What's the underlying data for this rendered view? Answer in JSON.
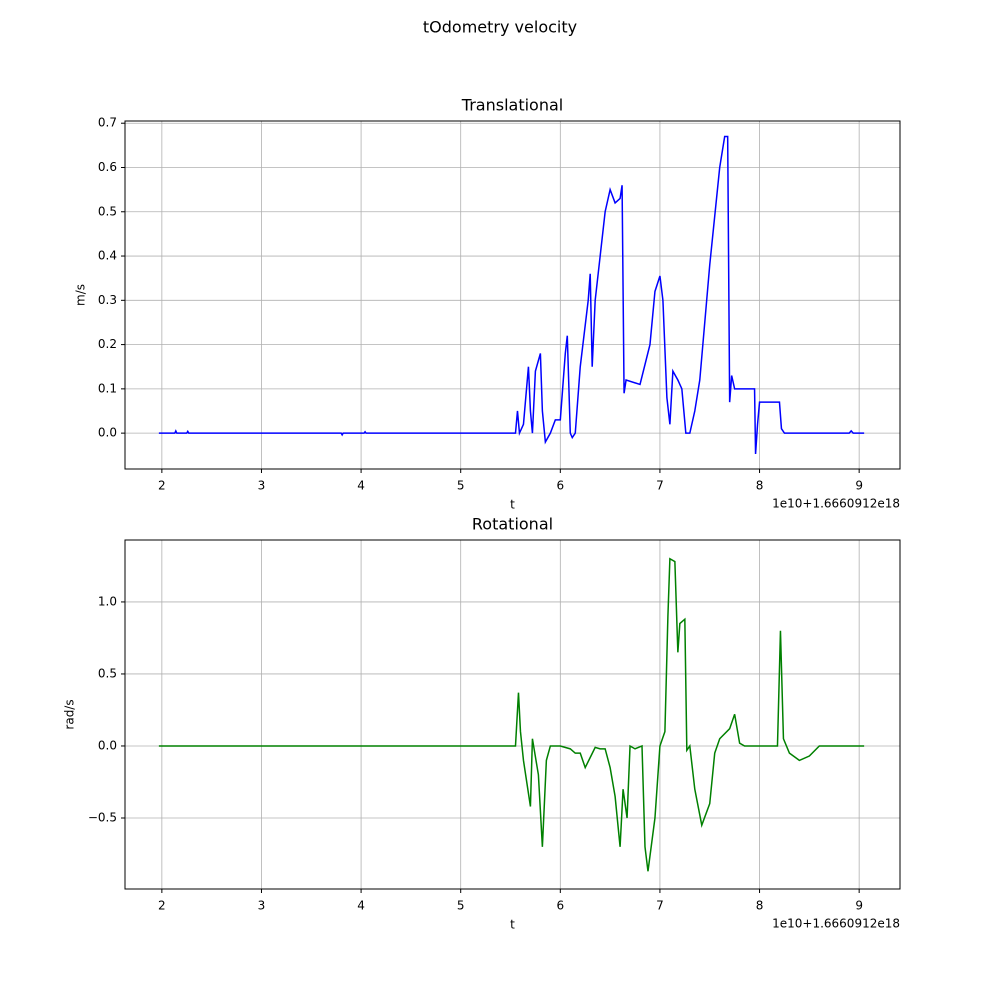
{
  "title": "tOdometry velocity",
  "chart_data": [
    {
      "type": "line",
      "title": "Translational",
      "x_label": "t",
      "y_label": "m/s",
      "annotation": "1e10+1.6660912e18",
      "xlim": [
        1.63,
        9.41
      ],
      "ylim": [
        -0.081,
        0.705
      ],
      "xticks": [
        2,
        3,
        4,
        5,
        6,
        7,
        8,
        9
      ],
      "yticks": [
        {
          "value": 0,
          "label": "0.0"
        },
        0.1,
        0.2,
        0.3,
        0.4,
        0.5,
        0.6,
        0.7
      ],
      "grid": true,
      "x": [
        1.97,
        2.13,
        2.14,
        2.15,
        2.25,
        2.26,
        2.27,
        3.8,
        3.81,
        3.82,
        4.03,
        4.04,
        4.05,
        5.55,
        5.57,
        5.59,
        5.63,
        5.68,
        5.7,
        5.72,
        5.75,
        5.8,
        5.82,
        5.85,
        5.9,
        5.95,
        6.0,
        6.05,
        6.07,
        6.1,
        6.12,
        6.15,
        6.2,
        6.28,
        6.3,
        6.32,
        6.35,
        6.4,
        6.45,
        6.5,
        6.55,
        6.6,
        6.62,
        6.64,
        6.66,
        6.8,
        6.9,
        6.95,
        7.0,
        7.03,
        7.07,
        7.1,
        7.13,
        7.18,
        7.22,
        7.26,
        7.3,
        7.35,
        7.4,
        7.5,
        7.6,
        7.65,
        7.68,
        7.7,
        7.72,
        7.75,
        7.9,
        7.95,
        7.96,
        7.98,
        8.0,
        8.2,
        8.22,
        8.25,
        8.6,
        8.9,
        8.92,
        8.94,
        9.05
      ],
      "series": [
        {
          "color": "#0000ff",
          "values": [
            0,
            0,
            0.005,
            0,
            0,
            0.004,
            0,
            0,
            -0.004,
            0,
            0,
            0.003,
            0,
            0,
            0.05,
            0,
            0.02,
            0.15,
            0.05,
            0,
            0.14,
            0.18,
            0.05,
            -0.02,
            0,
            0.03,
            0.03,
            0.18,
            0.22,
            0,
            -0.01,
            0,
            0.15,
            0.3,
            0.36,
            0.15,
            0.3,
            0.4,
            0.5,
            0.55,
            0.52,
            0.53,
            0.56,
            0.09,
            0.12,
            0.11,
            0.2,
            0.32,
            0.355,
            0.3,
            0.08,
            0.02,
            0.14,
            0.12,
            0.1,
            0,
            0,
            0.05,
            0.12,
            0.38,
            0.6,
            0.67,
            0.67,
            0.07,
            0.13,
            0.1,
            0.1,
            0.1,
            -0.047,
            0.02,
            0.07,
            0.07,
            0.01,
            0,
            0,
            0,
            0.005,
            0,
            0
          ]
        }
      ]
    },
    {
      "type": "line",
      "title": "Rotational",
      "x_label": "t",
      "y_label": "rad/s",
      "annotation": "1e10+1.6660912e18",
      "xlim": [
        1.63,
        9.41
      ],
      "ylim": [
        -0.993,
        1.43
      ],
      "xticks": [
        2,
        3,
        4,
        5,
        6,
        7,
        8,
        9
      ],
      "yticks": [
        {
          "value": -0.5,
          "label": "−0.5"
        },
        {
          "value": 0,
          "label": "0.0"
        },
        0.5,
        {
          "value": 1,
          "label": "1.0"
        }
      ],
      "grid": true,
      "x": [
        1.97,
        5.55,
        5.58,
        5.6,
        5.63,
        5.7,
        5.72,
        5.78,
        5.82,
        5.86,
        5.9,
        5.95,
        6.0,
        6.1,
        6.15,
        6.2,
        6.25,
        6.3,
        6.35,
        6.4,
        6.45,
        6.5,
        6.55,
        6.6,
        6.63,
        6.67,
        6.7,
        6.75,
        6.82,
        6.85,
        6.88,
        6.95,
        7.0,
        7.05,
        7.08,
        7.1,
        7.15,
        7.18,
        7.2,
        7.25,
        7.27,
        7.3,
        7.35,
        7.42,
        7.5,
        7.55,
        7.6,
        7.7,
        7.75,
        7.8,
        7.85,
        8.18,
        8.21,
        8.24,
        8.3,
        8.4,
        8.5,
        8.6,
        9.05
      ],
      "series": [
        {
          "color": "#008000",
          "values": [
            0,
            0,
            0.37,
            0.1,
            -0.1,
            -0.42,
            0.05,
            -0.2,
            -0.7,
            -0.1,
            0,
            0,
            0,
            -0.02,
            -0.05,
            -0.05,
            -0.15,
            -0.08,
            -0.01,
            -0.02,
            -0.02,
            -0.15,
            -0.35,
            -0.7,
            -0.3,
            -0.5,
            0,
            -0.02,
            0,
            -0.7,
            -0.87,
            -0.5,
            0,
            0.1,
            0.9,
            1.3,
            1.28,
            0.65,
            0.85,
            0.88,
            -0.03,
            0,
            -0.3,
            -0.55,
            -0.4,
            -0.05,
            0.05,
            0.12,
            0.22,
            0.02,
            0,
            0,
            0.8,
            0.05,
            -0.05,
            -0.1,
            -0.07,
            0,
            0
          ]
        }
      ]
    }
  ]
}
